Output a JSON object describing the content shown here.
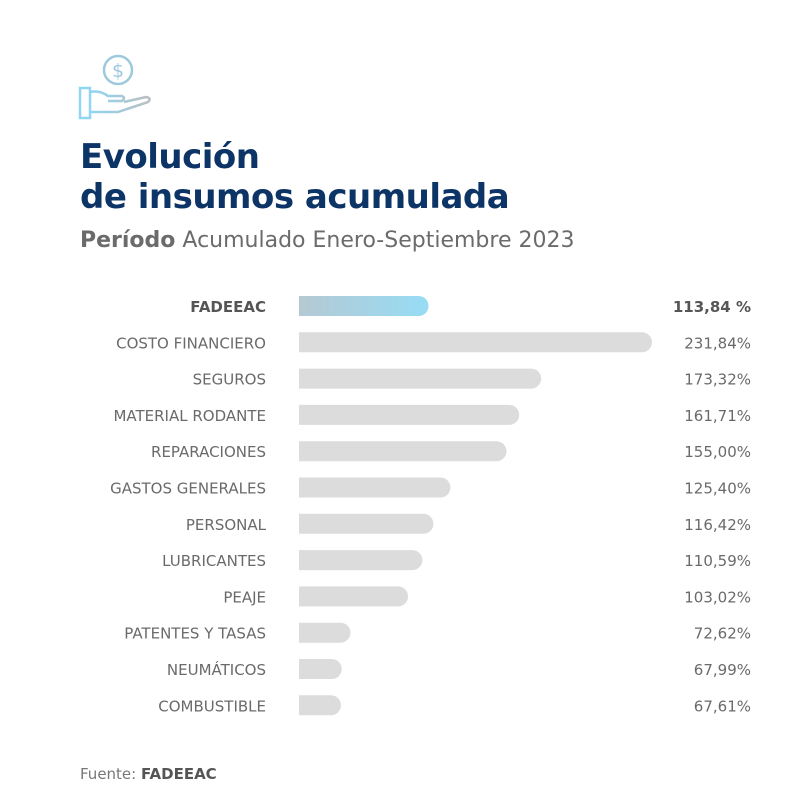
{
  "header": {
    "icon": "hand-with-dollar-coin-icon",
    "title_line1": "Evolución",
    "title_line2": "de insumos acumulada",
    "subtitle_bold": "Período",
    "subtitle_rest": " Acumulado Enero-Septiembre 2023"
  },
  "chart_data": {
    "type": "bar",
    "orientation": "horizontal",
    "categories": [
      "FADEEAC",
      "COSTO FINANCIERO",
      "SEGUROS",
      "MATERIAL RODANTE",
      "REPARACIONES",
      "GASTOS GENERALES",
      "PERSONAL",
      "LUBRICANTES",
      "PEAJE",
      "PATENTES Y TASAS",
      "NEUMÁTICOS",
      "COMBUSTIBLE"
    ],
    "values": [
      113.84,
      231.84,
      173.32,
      161.71,
      155.0,
      125.4,
      116.42,
      110.59,
      103.02,
      72.62,
      67.99,
      67.61
    ],
    "value_labels": [
      "113,84 %",
      "231,84%",
      "173,32%",
      "161,71%",
      "155,00%",
      "125,40%",
      "116,42%",
      "110,59%",
      "103,02%",
      "72,62%",
      "67,99%",
      "67,61%"
    ],
    "highlight": "FADEEAC",
    "colors": {
      "bar": "#dcdcdc",
      "highlight_start": "#b5c9d3",
      "highlight_end": "#97dcf5"
    },
    "grid": false
  },
  "footer": {
    "source_label": "Fuente: ",
    "source_name": "FADEEAC"
  }
}
